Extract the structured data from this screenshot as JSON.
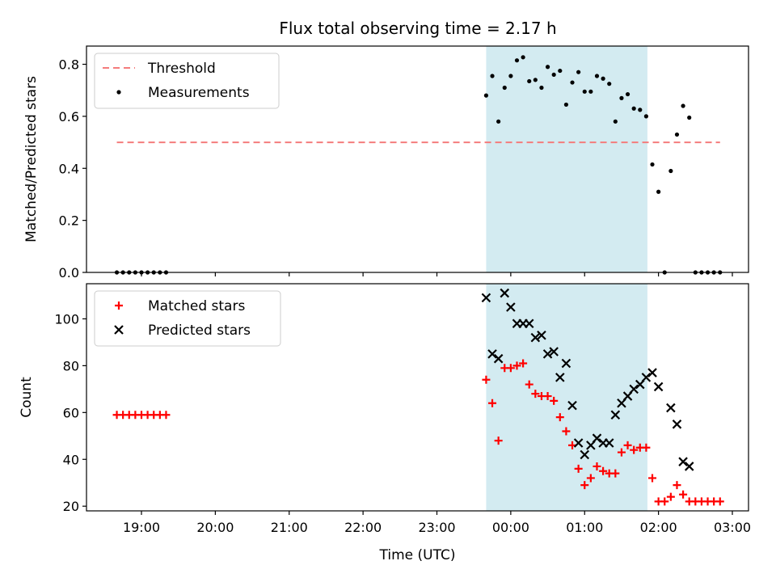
{
  "title": "Flux total observing time = 2.17 h",
  "chart_data": [
    {
      "type": "scatter",
      "ylabel": "Matched/Predicted stars",
      "xlabel": "",
      "ylim": [
        0,
        0.87
      ],
      "yticks": [
        "0.0",
        "0.2",
        "0.4",
        "0.6",
        "0.8"
      ],
      "legend_position": "top-left",
      "shaded_interval": {
        "start": "23:40",
        "end": "01:51",
        "color": "#d3ebf1"
      },
      "threshold": {
        "name": "Threshold",
        "value": 0.5,
        "start": "18:40",
        "end": "02:50",
        "color": "#f47c7c"
      },
      "series": [
        {
          "name": "Measurements",
          "marker": "dot",
          "color": "#000000",
          "points": [
            [
              "18:40",
              0
            ],
            [
              "18:45",
              0
            ],
            [
              "18:50",
              0
            ],
            [
              "18:55",
              0
            ],
            [
              "19:00",
              0
            ],
            [
              "19:05",
              0
            ],
            [
              "19:10",
              0
            ],
            [
              "19:15",
              0
            ],
            [
              "19:20",
              0
            ],
            [
              "23:40",
              0.68
            ],
            [
              "23:45",
              0.755
            ],
            [
              "23:50",
              0.58
            ],
            [
              "23:55",
              0.71
            ],
            [
              "00:00",
              0.755
            ],
            [
              "00:05",
              0.815
            ],
            [
              "00:10",
              0.827
            ],
            [
              "00:15",
              0.735
            ],
            [
              "00:20",
              0.74
            ],
            [
              "00:25",
              0.71
            ],
            [
              "00:30",
              0.79
            ],
            [
              "00:35",
              0.76
            ],
            [
              "00:40",
              0.775
            ],
            [
              "00:45",
              0.645
            ],
            [
              "00:50",
              0.73
            ],
            [
              "00:55",
              0.77
            ],
            [
              "01:00",
              0.695
            ],
            [
              "01:05",
              0.695
            ],
            [
              "01:10",
              0.755
            ],
            [
              "01:15",
              0.745
            ],
            [
              "01:20",
              0.725
            ],
            [
              "01:25",
              0.58
            ],
            [
              "01:30",
              0.67
            ],
            [
              "01:35",
              0.685
            ],
            [
              "01:40",
              0.63
            ],
            [
              "01:45",
              0.625
            ],
            [
              "01:50",
              0.6
            ],
            [
              "01:55",
              0.415
            ],
            [
              "02:00",
              0.31
            ],
            [
              "02:05",
              0
            ],
            [
              "02:10",
              0.39
            ],
            [
              "02:15",
              0.53
            ],
            [
              "02:20",
              0.64
            ],
            [
              "02:25",
              0.595
            ],
            [
              "02:30",
              0
            ],
            [
              "02:35",
              0
            ],
            [
              "02:40",
              0
            ],
            [
              "02:45",
              0
            ],
            [
              "02:50",
              0
            ]
          ]
        }
      ]
    },
    {
      "type": "scatter",
      "ylabel": "Count",
      "xlabel": "Time (UTC)",
      "ylim": [
        18,
        115
      ],
      "yticks": [
        "20",
        "40",
        "60",
        "80",
        "100"
      ],
      "xticks": [
        "19:00",
        "20:00",
        "21:00",
        "22:00",
        "23:00",
        "00:00",
        "01:00",
        "02:00",
        "03:00"
      ],
      "legend_position": "top-left",
      "shaded_interval": {
        "start": "23:40",
        "end": "01:51",
        "color": "#d3ebf1"
      },
      "series": [
        {
          "name": "Matched stars",
          "marker": "plus",
          "color": "#ff0000",
          "points": [
            [
              "18:40",
              59
            ],
            [
              "18:45",
              59
            ],
            [
              "18:50",
              59
            ],
            [
              "18:55",
              59
            ],
            [
              "19:00",
              59
            ],
            [
              "19:05",
              59
            ],
            [
              "19:10",
              59
            ],
            [
              "19:15",
              59
            ],
            [
              "19:20",
              59
            ],
            [
              "23:40",
              74
            ],
            [
              "23:45",
              64
            ],
            [
              "23:50",
              48
            ],
            [
              "23:55",
              79
            ],
            [
              "00:00",
              79
            ],
            [
              "00:05",
              80
            ],
            [
              "00:10",
              81
            ],
            [
              "00:15",
              72
            ],
            [
              "00:20",
              68
            ],
            [
              "00:25",
              67
            ],
            [
              "00:30",
              67
            ],
            [
              "00:35",
              65
            ],
            [
              "00:40",
              58
            ],
            [
              "00:45",
              52
            ],
            [
              "00:50",
              46
            ],
            [
              "00:55",
              36
            ],
            [
              "01:00",
              29
            ],
            [
              "01:05",
              32
            ],
            [
              "01:10",
              37
            ],
            [
              "01:15",
              35
            ],
            [
              "01:20",
              34
            ],
            [
              "01:25",
              34
            ],
            [
              "01:30",
              43
            ],
            [
              "01:35",
              46
            ],
            [
              "01:40",
              44
            ],
            [
              "01:45",
              45
            ],
            [
              "01:50",
              45
            ],
            [
              "01:55",
              32
            ],
            [
              "02:00",
              22
            ],
            [
              "02:05",
              22
            ],
            [
              "02:10",
              24
            ],
            [
              "02:15",
              29
            ],
            [
              "02:20",
              25
            ],
            [
              "02:25",
              22
            ],
            [
              "02:30",
              22
            ],
            [
              "02:35",
              22
            ],
            [
              "02:40",
              22
            ],
            [
              "02:45",
              22
            ],
            [
              "02:50",
              22
            ]
          ]
        },
        {
          "name": "Predicted stars",
          "marker": "x",
          "color": "#000000",
          "points": [
            [
              "23:40",
              109
            ],
            [
              "23:45",
              85
            ],
            [
              "23:50",
              83
            ],
            [
              "23:55",
              111
            ],
            [
              "00:00",
              105
            ],
            [
              "00:05",
              98
            ],
            [
              "00:10",
              98
            ],
            [
              "00:15",
              98
            ],
            [
              "00:20",
              92
            ],
            [
              "00:25",
              93
            ],
            [
              "00:30",
              85
            ],
            [
              "00:35",
              86
            ],
            [
              "00:40",
              75
            ],
            [
              "00:45",
              81
            ],
            [
              "00:50",
              63
            ],
            [
              "00:55",
              47
            ],
            [
              "01:00",
              42
            ],
            [
              "01:05",
              46
            ],
            [
              "01:10",
              49
            ],
            [
              "01:15",
              47
            ],
            [
              "01:20",
              47
            ],
            [
              "01:25",
              59
            ],
            [
              "01:30",
              64
            ],
            [
              "01:35",
              67
            ],
            [
              "01:40",
              70
            ],
            [
              "01:45",
              72
            ],
            [
              "01:50",
              75
            ],
            [
              "01:55",
              77
            ],
            [
              "02:00",
              71
            ],
            [
              "02:10",
              62
            ],
            [
              "02:15",
              55
            ],
            [
              "02:20",
              39
            ],
            [
              "02:25",
              37
            ]
          ]
        }
      ]
    }
  ]
}
